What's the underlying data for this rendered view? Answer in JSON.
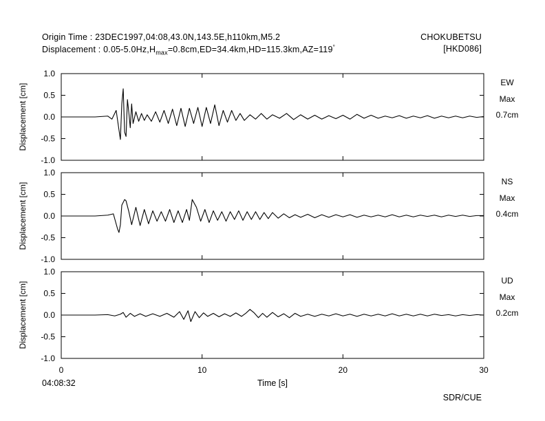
{
  "header": {
    "origin_label": "Origin Time : 23DEC1997,04:08,43.0N,143.5E,h110km,M5.2",
    "disp_prefix": "Displacement : 0.05-5.0Hz,H",
    "disp_sub": "max",
    "disp_suffix": "=0.8cm,ED=34.4km,HD=115.3km,AZ=119",
    "disp_deg": "°",
    "station_name": "CHOKUBETSU",
    "station_code": "[HKD086]"
  },
  "footer": {
    "start_time": "04:08:32",
    "credit": "SDR/CUE"
  },
  "chart_data": {
    "type": "line",
    "xlabel": "Time [s]",
    "xlim": [
      0,
      30
    ],
    "xticks": [
      "0",
      "10",
      "20",
      "30"
    ],
    "ylabel": "Displacement [cm]",
    "ylim": [
      -1.0,
      1.0
    ],
    "yticks": [
      "1.0",
      "0.5",
      "0.0",
      "-0.5",
      "-1.0"
    ],
    "line_color": "#000000",
    "panels": [
      {
        "component": "EW",
        "max_label": "Max",
        "max_value": "0.7cm",
        "x": [
          0,
          2.4,
          3.3,
          3.6,
          3.9,
          4.1,
          4.2,
          4.3,
          4.4,
          4.5,
          4.6,
          4.7,
          4.8,
          4.9,
          5.0,
          5.1,
          5.3,
          5.5,
          5.7,
          5.9,
          6.1,
          6.4,
          6.7,
          7.0,
          7.3,
          7.6,
          7.9,
          8.2,
          8.5,
          8.8,
          9.1,
          9.4,
          9.7,
          10.0,
          10.3,
          10.6,
          10.9,
          11.2,
          11.5,
          11.8,
          12.1,
          12.4,
          12.7,
          13.0,
          13.4,
          13.8,
          14.2,
          14.6,
          15.0,
          15.5,
          16.0,
          16.5,
          17.0,
          17.5,
          18.0,
          18.5,
          19.0,
          19.5,
          20.0,
          20.5,
          21.0,
          21.5,
          22.0,
          22.5,
          23.0,
          23.5,
          24.0,
          24.5,
          25.0,
          25.5,
          26.0,
          26.5,
          27.0,
          27.5,
          28.0,
          28.5,
          29.0,
          29.5,
          30.0
        ],
        "y": [
          0,
          0,
          0.02,
          -0.05,
          0.15,
          -0.3,
          -0.52,
          0.3,
          0.65,
          -0.35,
          -0.45,
          0.4,
          0.1,
          -0.25,
          0.3,
          -0.15,
          0.12,
          -0.1,
          0.08,
          -0.08,
          0.05,
          -0.1,
          0.12,
          -0.12,
          0.15,
          -0.15,
          0.18,
          -0.2,
          0.2,
          -0.22,
          0.2,
          -0.15,
          0.22,
          -0.22,
          0.22,
          -0.15,
          0.28,
          -0.2,
          0.15,
          -0.12,
          0.15,
          -0.08,
          0.08,
          -0.08,
          0.05,
          -0.05,
          0.08,
          -0.05,
          0.05,
          -0.03,
          0.08,
          -0.06,
          0.05,
          -0.05,
          0.04,
          -0.05,
          0.03,
          -0.04,
          0.04,
          -0.05,
          0.06,
          -0.03,
          0.04,
          -0.03,
          0.02,
          -0.02,
          0.03,
          -0.03,
          0.02,
          -0.02,
          0.03,
          -0.03,
          0.02,
          -0.02,
          0.02,
          -0.02,
          0.02,
          -0.01,
          0.01
        ]
      },
      {
        "component": "NS",
        "max_label": "Max",
        "max_value": "0.4cm",
        "x": [
          0,
          2.4,
          3.3,
          3.7,
          4.0,
          4.1,
          4.2,
          4.3,
          4.5,
          4.6,
          4.8,
          5.0,
          5.3,
          5.6,
          5.9,
          6.2,
          6.5,
          6.8,
          7.1,
          7.4,
          7.7,
          8.0,
          8.3,
          8.6,
          8.9,
          9.1,
          9.3,
          9.6,
          9.9,
          10.2,
          10.5,
          10.8,
          11.1,
          11.4,
          11.7,
          12.0,
          12.3,
          12.6,
          12.9,
          13.2,
          13.5,
          13.8,
          14.1,
          14.4,
          14.7,
          15.0,
          15.4,
          15.8,
          16.2,
          16.6,
          17.0,
          17.5,
          18.0,
          18.5,
          19.0,
          19.5,
          20.0,
          20.5,
          21.0,
          21.5,
          22.0,
          22.5,
          23.0,
          23.5,
          24.0,
          24.5,
          25.0,
          25.5,
          26.0,
          26.5,
          27.0,
          27.5,
          28.0,
          28.5,
          29.0,
          29.5,
          30.0
        ],
        "y": [
          0,
          0,
          0.02,
          0.05,
          -0.3,
          -0.38,
          -0.2,
          0.25,
          0.38,
          0.35,
          0.1,
          -0.2,
          0.2,
          -0.22,
          0.15,
          -0.18,
          0.12,
          -0.12,
          0.1,
          -0.12,
          0.15,
          -0.15,
          0.12,
          -0.15,
          0.15,
          -0.1,
          0.38,
          0.2,
          -0.12,
          0.15,
          -0.15,
          0.12,
          -0.1,
          0.1,
          -0.12,
          0.1,
          -0.08,
          0.12,
          -0.1,
          0.1,
          -0.08,
          0.1,
          -0.08,
          0.08,
          -0.06,
          0.08,
          -0.05,
          0.05,
          -0.04,
          0.03,
          -0.03,
          0.04,
          -0.04,
          0.03,
          -0.03,
          0.03,
          -0.02,
          0.03,
          -0.03,
          0.02,
          -0.02,
          0.02,
          -0.02,
          0.03,
          -0.02,
          0.02,
          -0.02,
          0.02,
          -0.01,
          0.02,
          -0.02,
          0.02,
          -0.01,
          0.02,
          -0.01,
          0.01,
          0.01
        ]
      },
      {
        "component": "UD",
        "max_label": "Max",
        "max_value": "0.2cm",
        "x": [
          0,
          2.4,
          3.3,
          3.8,
          4.2,
          4.4,
          4.6,
          4.9,
          5.2,
          5.6,
          6.0,
          6.5,
          7.0,
          7.5,
          8.0,
          8.4,
          8.7,
          9.0,
          9.2,
          9.5,
          9.8,
          10.1,
          10.4,
          10.8,
          11.2,
          11.6,
          12.0,
          12.4,
          12.8,
          13.1,
          13.4,
          13.7,
          14.0,
          14.3,
          14.6,
          15.0,
          15.4,
          15.8,
          16.2,
          16.6,
          17.0,
          17.5,
          18.0,
          18.5,
          19.0,
          19.5,
          20.0,
          20.5,
          21.0,
          21.5,
          22.0,
          22.5,
          23.0,
          23.5,
          24.0,
          24.5,
          25.0,
          25.5,
          26.0,
          26.5,
          27.0,
          27.5,
          28.0,
          28.5,
          29.0,
          29.5,
          30.0
        ],
        "y": [
          0,
          0,
          0.01,
          -0.02,
          0.02,
          0.06,
          -0.05,
          0.04,
          -0.03,
          0.03,
          -0.03,
          0.03,
          -0.03,
          0.04,
          -0.05,
          0.08,
          -0.1,
          0.1,
          -0.15,
          0.08,
          -0.06,
          0.05,
          -0.03,
          0.04,
          -0.04,
          0.03,
          -0.03,
          0.05,
          -0.03,
          0.04,
          0.13,
          0.05,
          -0.06,
          0.04,
          -0.05,
          0.06,
          -0.04,
          0.03,
          -0.06,
          0.04,
          -0.03,
          0.02,
          -0.03,
          0.02,
          -0.02,
          0.03,
          -0.02,
          0.02,
          -0.03,
          0.02,
          -0.02,
          0.02,
          -0.02,
          0.03,
          -0.02,
          0.02,
          -0.02,
          0.02,
          -0.02,
          0.02,
          -0.01,
          0.01,
          -0.02,
          0.01,
          -0.01,
          0.01,
          0
        ]
      }
    ]
  }
}
